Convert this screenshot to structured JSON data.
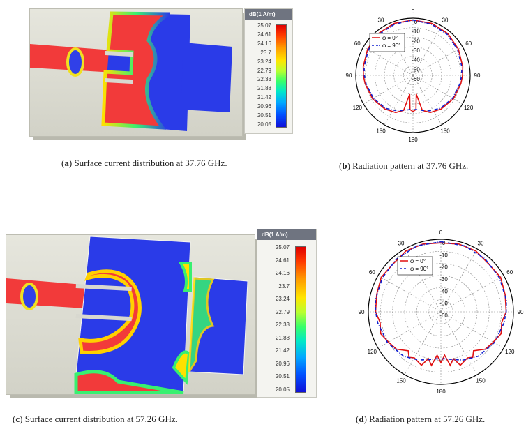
{
  "figure_a": {
    "caption_label": "a",
    "caption_text": " Surface current distribution at 37.76 GHz.",
    "legend_title": "dB(1 A/m)",
    "legend_ticks": [
      "25.07",
      "24.61",
      "24.16",
      "23.7",
      "23.24",
      "22.79",
      "22.33",
      "21.88",
      "21.42",
      "20.96",
      "20.51",
      "20.05"
    ]
  },
  "figure_b": {
    "caption_label": "b",
    "caption_text": " Radiation pattern at 37.76 GHz."
  },
  "figure_c": {
    "caption_label": "c",
    "caption_text": " Surface current distribution at 57.26 GHz.",
    "legend_title": "dB(1 A/m)",
    "legend_ticks": [
      "25.07",
      "24.61",
      "24.16",
      "23.7",
      "23.24",
      "22.79",
      "22.33",
      "21.88",
      "21.42",
      "20.96",
      "20.51",
      "20.05"
    ]
  },
  "figure_d": {
    "caption_label": "d",
    "caption_text": " Radiation pattern at 57.26 GHz."
  },
  "colors": {
    "phi0": "#e01010",
    "phi90": "#1020d0",
    "hot": "#f23a3a",
    "cold": "#2a3be8"
  },
  "chart_data": [
    {
      "type": "polar",
      "angle_labels": [
        "0",
        "30",
        "60",
        "90",
        "120",
        "150",
        "180",
        "150",
        "120",
        "90",
        "60",
        "30"
      ],
      "radial_labels": [
        "0",
        "-10",
        "-20",
        "-30",
        "-40",
        "-50",
        "-60"
      ],
      "rlim": [
        -60,
        0
      ],
      "legend_placement": "upper-left",
      "series": [
        {
          "name": "φ = 0°",
          "color": "#e01010",
          "style": "solid",
          "angles": [
            0,
            20,
            40,
            60,
            80,
            90,
            100,
            120,
            140,
            155,
            165,
            170,
            175,
            180,
            185,
            190,
            195,
            205,
            220,
            240,
            260,
            270,
            280,
            300,
            320,
            340,
            360
          ],
          "values": [
            -2,
            -2,
            -3,
            -5,
            -7,
            -8,
            -9,
            -11,
            -14,
            -17,
            -22,
            -40,
            -24,
            -22,
            -24,
            -40,
            -22,
            -17,
            -14,
            -11,
            -9,
            -8,
            -7,
            -5,
            -3,
            -2,
            -2
          ]
        },
        {
          "name": "φ = 90°",
          "color": "#1020d0",
          "style": "dashed",
          "angles": [
            0,
            20,
            40,
            60,
            80,
            90,
            100,
            120,
            140,
            155,
            165,
            175,
            180,
            185,
            195,
            205,
            220,
            240,
            260,
            270,
            280,
            300,
            320,
            340,
            360
          ],
          "values": [
            -2,
            -3,
            -4,
            -6,
            -8,
            -9,
            -10,
            -12,
            -15,
            -19,
            -22,
            -24,
            -24,
            -24,
            -22,
            -19,
            -15,
            -12,
            -10,
            -9,
            -8,
            -6,
            -4,
            -3,
            -2
          ]
        }
      ]
    },
    {
      "type": "polar",
      "angle_labels": [
        "0",
        "30",
        "60",
        "90",
        "120",
        "150",
        "180",
        "150",
        "120",
        "90",
        "60",
        "30"
      ],
      "radial_labels": [
        "0",
        "-10",
        "-20",
        "-30",
        "-40",
        "-50",
        "-60"
      ],
      "rlim": [
        -60,
        0
      ],
      "legend_placement": "upper-left",
      "series": [
        {
          "name": "φ = 0°",
          "color": "#e01010",
          "style": "solid",
          "angles": [
            0,
            15,
            30,
            45,
            60,
            75,
            90,
            100,
            110,
            120,
            130,
            140,
            145,
            150,
            160,
            165,
            170,
            175,
            180,
            185,
            190,
            195,
            200,
            210,
            215,
            220,
            230,
            240,
            250,
            260,
            270,
            285,
            300,
            315,
            330,
            345,
            360
          ],
          "values": [
            -3,
            -2,
            -2,
            -4,
            -3,
            -5,
            -6,
            -9,
            -7,
            -10,
            -12,
            -18,
            -14,
            -16,
            -13,
            -20,
            -15,
            -24,
            -18,
            -24,
            -15,
            -20,
            -13,
            -16,
            -14,
            -18,
            -12,
            -10,
            -7,
            -9,
            -6,
            -5,
            -3,
            -4,
            -2,
            -2,
            -3
          ]
        },
        {
          "name": "φ = 90°",
          "color": "#1020d0",
          "style": "dashed",
          "angles": [
            0,
            20,
            40,
            60,
            80,
            90,
            100,
            120,
            140,
            155,
            165,
            175,
            180,
            185,
            195,
            205,
            220,
            240,
            260,
            270,
            280,
            300,
            320,
            340,
            360
          ],
          "values": [
            -2,
            -2,
            -3,
            -4,
            -5,
            -6,
            -7,
            -9,
            -12,
            -16,
            -19,
            -21,
            -21,
            -21,
            -19,
            -16,
            -12,
            -9,
            -7,
            -6,
            -5,
            -4,
            -3,
            -2,
            -2
          ]
        }
      ]
    }
  ]
}
